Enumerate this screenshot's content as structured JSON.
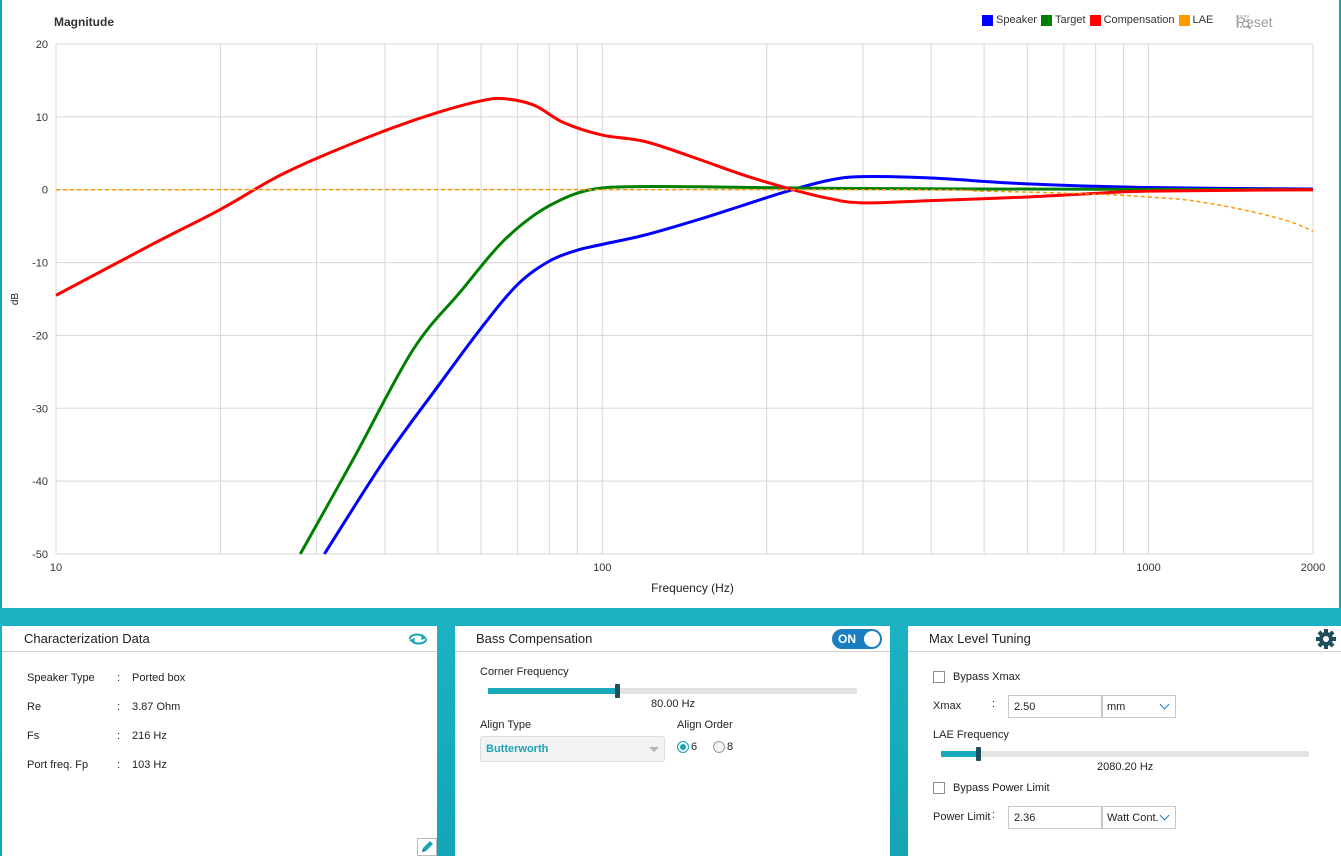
{
  "chart": {
    "title": "Magnitude",
    "reset_label": "Reset",
    "legend": [
      {
        "name": "Speaker",
        "color": "#0000ff"
      },
      {
        "name": "Target",
        "color": "#008000"
      },
      {
        "name": "Compensation",
        "color": "#ff0000"
      },
      {
        "name": "LAE",
        "color": "#ff9900"
      }
    ]
  },
  "chart_data": {
    "type": "line",
    "title": "Magnitude",
    "xlabel": "Frequency (Hz)",
    "ylabel": "dB",
    "xscale": "log",
    "xlim": [
      10,
      2000
    ],
    "ylim": [
      -50,
      20
    ],
    "x_tick_labels": [
      "10",
      "100",
      "1000",
      "2000"
    ],
    "y_ticks": [
      20,
      10,
      0,
      -10,
      -20,
      -30,
      -40,
      -50
    ],
    "grid": true,
    "legend_position": "top-right",
    "series": [
      {
        "name": "Speaker",
        "color": "#0000ff",
        "dashed": false,
        "points": [
          [
            31,
            -50
          ],
          [
            40,
            -37
          ],
          [
            50,
            -27
          ],
          [
            60,
            -19
          ],
          [
            70,
            -13
          ],
          [
            80,
            -9.8
          ],
          [
            90,
            -8.3
          ],
          [
            100,
            -7.5
          ],
          [
            120,
            -6.2
          ],
          [
            150,
            -4.1
          ],
          [
            180,
            -2.2
          ],
          [
            216,
            -0.3
          ],
          [
            260,
            1.3
          ],
          [
            300,
            1.8
          ],
          [
            400,
            1.6
          ],
          [
            600,
            0.8
          ],
          [
            1000,
            0.3
          ],
          [
            2000,
            0.1
          ]
        ]
      },
      {
        "name": "Target",
        "color": "#008000",
        "dashed": false,
        "points": [
          [
            28,
            -50
          ],
          [
            35,
            -37
          ],
          [
            45,
            -22
          ],
          [
            55,
            -14
          ],
          [
            65,
            -7.5
          ],
          [
            75,
            -3.5
          ],
          [
            85,
            -1.2
          ],
          [
            95,
            0
          ],
          [
            110,
            0.4
          ],
          [
            150,
            0.4
          ],
          [
            250,
            0.2
          ],
          [
            500,
            0.1
          ],
          [
            2000,
            0
          ]
        ]
      },
      {
        "name": "Compensation",
        "color": "#ff0000",
        "dashed": false,
        "points": [
          [
            10,
            -14.5
          ],
          [
            15,
            -7.5
          ],
          [
            20,
            -2.7
          ],
          [
            25,
            1.5
          ],
          [
            30,
            4.3
          ],
          [
            40,
            8.1
          ],
          [
            50,
            10.6
          ],
          [
            60,
            12.2
          ],
          [
            66,
            12.5
          ],
          [
            75,
            11.6
          ],
          [
            85,
            9.2
          ],
          [
            100,
            7.5
          ],
          [
            120,
            6.6
          ],
          [
            150,
            4.2
          ],
          [
            180,
            2.1
          ],
          [
            216,
            0.3
          ],
          [
            260,
            -1.2
          ],
          [
            300,
            -1.8
          ],
          [
            400,
            -1.5
          ],
          [
            600,
            -1.0
          ],
          [
            800,
            -0.5
          ],
          [
            1000,
            -0.2
          ],
          [
            2000,
            0
          ]
        ]
      },
      {
        "name": "LAE",
        "color": "#ff9900",
        "dashed": true,
        "points": [
          [
            10,
            0
          ],
          [
            300,
            0
          ],
          [
            500,
            -0.2
          ],
          [
            800,
            -0.6
          ],
          [
            1000,
            -1.0
          ],
          [
            1200,
            -1.5
          ],
          [
            1500,
            -2.8
          ],
          [
            1800,
            -4.3
          ],
          [
            2000,
            -5.7
          ]
        ]
      }
    ]
  },
  "characterization": {
    "title": "Characterization Data",
    "rows": [
      {
        "label": "Speaker Type",
        "value": "Ported box"
      },
      {
        "label": "Re",
        "value": "3.87 Ohm"
      },
      {
        "label": "Fs",
        "value": "216 Hz"
      },
      {
        "label": "Port freq. Fp",
        "value": "103 Hz"
      }
    ]
  },
  "bass": {
    "title": "Bass Compensation",
    "toggle_label": "ON",
    "corner_label": "Corner Frequency",
    "corner_value": "80.00 Hz",
    "corner_fraction": 0.35,
    "align_type_label": "Align Type",
    "align_type_value": "Butterworth",
    "align_order_label": "Align Order",
    "order_options": [
      "6",
      "8"
    ],
    "order_selected": "6"
  },
  "maxlevel": {
    "title": "Max Level Tuning",
    "bypass_xmax_label": "Bypass Xmax",
    "xmax_label": "Xmax",
    "xmax_value": "2.50",
    "xmax_unit": "mm",
    "lae_label": "LAE Frequency",
    "lae_value": "2080.20 Hz",
    "lae_fraction": 0.1,
    "bypass_power_label": "Bypass Power Limit",
    "power_label": "Power Limit",
    "power_value": "2.36",
    "power_unit": "Watt Cont."
  }
}
